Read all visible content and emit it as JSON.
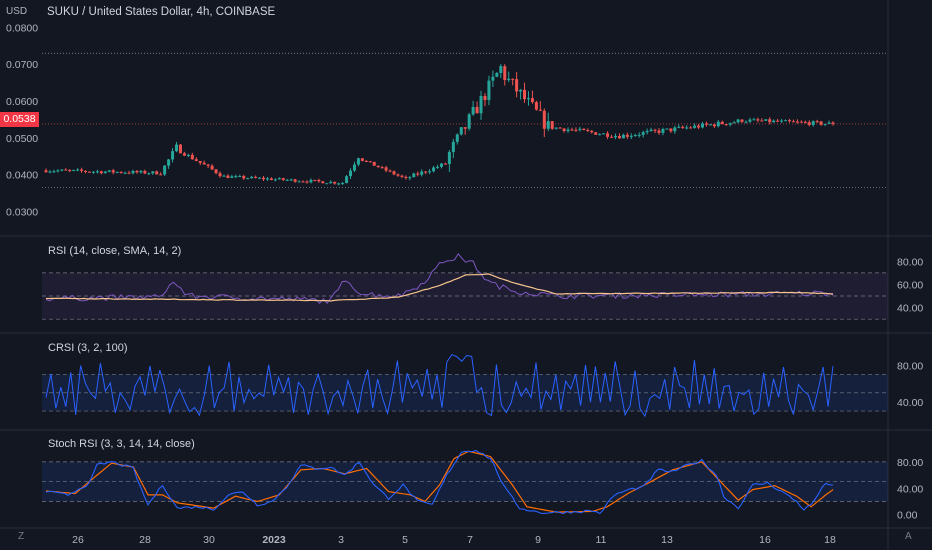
{
  "header": {
    "title": "SUKU / United States Dollar, 4h, COINBASE",
    "currency": "USD"
  },
  "price_tag": "0.0538",
  "indicators": {
    "rsi": "RSI (14, close, SMA, 14, 2)",
    "crsi": "CRSI (3, 2, 100)",
    "stoch": "Stoch RSI (3, 3, 14, 14, close)"
  },
  "corner_left": "Z",
  "corner_right": "A",
  "colors": {
    "background": "#131722",
    "up": "#26a69a",
    "down": "#ef5350",
    "rsi_line": "#7e57c2",
    "rsi_ma": "#f7c58b",
    "crsi_line": "#2962ff",
    "stoch_k": "#2962ff",
    "stoch_d": "#ff6d00",
    "price_tag": "#f23645"
  },
  "chart_data": [
    {
      "type": "candlestick",
      "y_ticks": [
        "0.0800",
        "0.0700",
        "0.0600",
        "0.0500",
        "0.0400",
        "0.0300"
      ],
      "ylim": [
        0.025,
        0.082
      ],
      "x_ticks": [
        "26",
        "28",
        "30",
        "2023",
        "3",
        "5",
        "7",
        "9",
        "11",
        "13",
        "16",
        "18"
      ],
      "support_levels": [
        0.073,
        0.0365
      ],
      "segments": [
        {
          "bars": 30,
          "start": 0.0412,
          "end": 0.0405,
          "vol": 0.0007
        },
        {
          "bars": 4,
          "start": 0.0405,
          "end": 0.0475,
          "vol": 0.0012
        },
        {
          "bars": 12,
          "start": 0.047,
          "end": 0.0395,
          "vol": 0.0008
        },
        {
          "bars": 30,
          "start": 0.0395,
          "end": 0.0378,
          "vol": 0.0006
        },
        {
          "bars": 4,
          "start": 0.038,
          "end": 0.045,
          "vol": 0.001
        },
        {
          "bars": 12,
          "start": 0.0445,
          "end": 0.0388,
          "vol": 0.0006
        },
        {
          "bars": 10,
          "start": 0.039,
          "end": 0.043,
          "vol": 0.0008
        },
        {
          "bars": 14,
          "start": 0.044,
          "end": 0.069,
          "vol": 0.003
        },
        {
          "bars": 12,
          "start": 0.068,
          "end": 0.053,
          "vol": 0.003
        },
        {
          "bars": 18,
          "start": 0.053,
          "end": 0.0505,
          "vol": 0.0009
        },
        {
          "bars": 30,
          "start": 0.0505,
          "end": 0.0545,
          "vol": 0.001
        },
        {
          "bars": 24,
          "start": 0.0548,
          "end": 0.0538,
          "vol": 0.0008
        }
      ],
      "last_price": 0.0538
    },
    {
      "type": "line",
      "name": "RSI (14, close, SMA, 14, 2)",
      "y_ticks": [
        "80.00",
        "60.00",
        "40.00"
      ],
      "ylim": [
        25,
        88
      ],
      "band": [
        70,
        30
      ],
      "midline": 50,
      "rsi_key_points": [
        [
          0,
          48
        ],
        [
          30,
          49
        ],
        [
          34,
          62
        ],
        [
          38,
          50
        ],
        [
          76,
          46
        ],
        [
          80,
          65
        ],
        [
          84,
          52
        ],
        [
          94,
          50
        ],
        [
          100,
          60
        ],
        [
          106,
          80
        ],
        [
          110,
          84
        ],
        [
          114,
          78
        ],
        [
          118,
          62
        ],
        [
          124,
          55
        ],
        [
          136,
          50
        ],
        [
          200,
          52
        ],
        [
          210,
          53
        ]
      ],
      "ma_key_points": [
        [
          0,
          48
        ],
        [
          76,
          46
        ],
        [
          94,
          49
        ],
        [
          104,
          58
        ],
        [
          112,
          68
        ],
        [
          118,
          69
        ],
        [
          124,
          62
        ],
        [
          136,
          52
        ],
        [
          200,
          53
        ],
        [
          210,
          52
        ]
      ]
    },
    {
      "type": "line",
      "name": "CRSI (3, 2, 100)",
      "y_ticks": [
        "80.00",
        "40.00"
      ],
      "ylim": [
        18,
        98
      ],
      "band": [
        70,
        30
      ],
      "midline": 50,
      "peak_region": [
        106,
        114,
        92
      ]
    },
    {
      "type": "line",
      "name": "Stoch RSI (3, 3, 14, 14, close)",
      "y_ticks": [
        "80.00",
        "40.00",
        "0.00"
      ],
      "ylim": [
        -8,
        104
      ],
      "band": [
        80,
        20
      ],
      "midline": 50,
      "k_key_points": [
        [
          0,
          35
        ],
        [
          6,
          30
        ],
        [
          12,
          48
        ],
        [
          14,
          75
        ],
        [
          18,
          80
        ],
        [
          24,
          70
        ],
        [
          26,
          40
        ],
        [
          28,
          15
        ],
        [
          32,
          45
        ],
        [
          36,
          10
        ],
        [
          42,
          12
        ],
        [
          46,
          8
        ],
        [
          50,
          30
        ],
        [
          54,
          35
        ],
        [
          58,
          15
        ],
        [
          62,
          20
        ],
        [
          66,
          42
        ],
        [
          70,
          75
        ],
        [
          74,
          70
        ],
        [
          78,
          72
        ],
        [
          82,
          60
        ],
        [
          86,
          80
        ],
        [
          90,
          45
        ],
        [
          94,
          25
        ],
        [
          98,
          45
        ],
        [
          102,
          20
        ],
        [
          106,
          15
        ],
        [
          110,
          60
        ],
        [
          114,
          95
        ],
        [
          118,
          98
        ],
        [
          122,
          85
        ],
        [
          126,
          40
        ],
        [
          130,
          10
        ],
        [
          136,
          3
        ],
        [
          144,
          4
        ],
        [
          150,
          6
        ],
        [
          152,
          2
        ],
        [
          156,
          30
        ],
        [
          160,
          38
        ],
        [
          164,
          42
        ],
        [
          168,
          68
        ],
        [
          172,
          65
        ],
        [
          176,
          75
        ],
        [
          180,
          82
        ],
        [
          184,
          60
        ],
        [
          186,
          28
        ],
        [
          190,
          10
        ],
        [
          194,
          45
        ],
        [
          198,
          48
        ],
        [
          202,
          35
        ],
        [
          206,
          20
        ],
        [
          208,
          8
        ],
        [
          210,
          15
        ],
        [
          214,
          48
        ],
        [
          216,
          45
        ]
      ],
      "d_key_points": [
        [
          0,
          36
        ],
        [
          8,
          32
        ],
        [
          14,
          60
        ],
        [
          18,
          78
        ],
        [
          24,
          72
        ],
        [
          28,
          30
        ],
        [
          32,
          30
        ],
        [
          36,
          18
        ],
        [
          46,
          10
        ],
        [
          52,
          28
        ],
        [
          58,
          20
        ],
        [
          64,
          30
        ],
        [
          70,
          68
        ],
        [
          76,
          70
        ],
        [
          82,
          62
        ],
        [
          88,
          70
        ],
        [
          94,
          35
        ],
        [
          100,
          30
        ],
        [
          104,
          20
        ],
        [
          108,
          45
        ],
        [
          112,
          85
        ],
        [
          116,
          96
        ],
        [
          122,
          88
        ],
        [
          128,
          45
        ],
        [
          132,
          12
        ],
        [
          140,
          4
        ],
        [
          150,
          5
        ],
        [
          154,
          12
        ],
        [
          160,
          33
        ],
        [
          166,
          50
        ],
        [
          172,
          68
        ],
        [
          180,
          80
        ],
        [
          186,
          45
        ],
        [
          190,
          22
        ],
        [
          194,
          38
        ],
        [
          200,
          44
        ],
        [
          206,
          28
        ],
        [
          210,
          12
        ],
        [
          214,
          30
        ],
        [
          216,
          38
        ]
      ]
    }
  ]
}
